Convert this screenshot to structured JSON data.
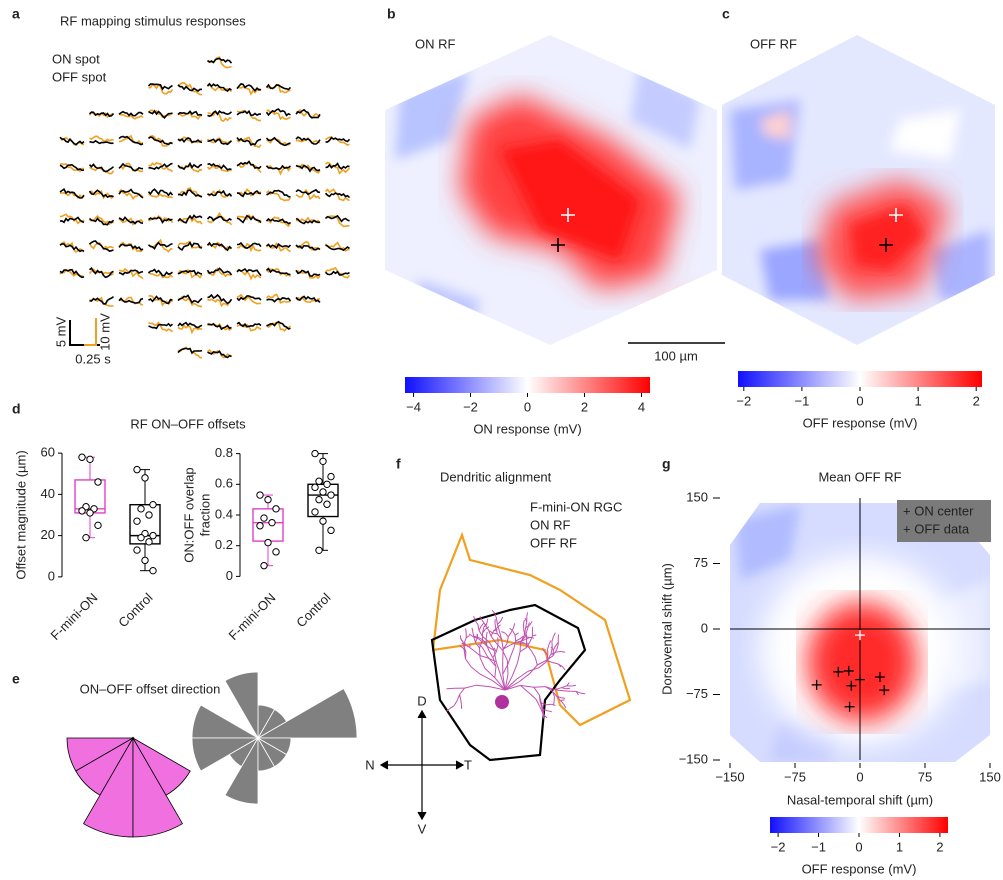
{
  "panel_a": {
    "letter": "a",
    "title": "RF mapping stimulus responses",
    "legend": [
      {
        "name": "ON spot",
        "color": "#f0a020"
      },
      {
        "name": "OFF spot",
        "color": "#000000"
      }
    ],
    "scale_bars": {
      "off_y": "5 mV",
      "on_y": "10 mV",
      "x": "0.25 s"
    }
  },
  "panel_b": {
    "letter": "b",
    "title": "ON RF",
    "scale_bar": "100 µm",
    "colorbar": {
      "label": "ON response (mV)",
      "lim": [
        -4.3,
        4.3
      ],
      "ticks": [
        {
          "value": -4,
          "label": "−4"
        },
        {
          "value": -2,
          "label": "−2"
        },
        0,
        2,
        4
      ]
    }
  },
  "panel_c": {
    "letter": "c",
    "title": "OFF RF",
    "colorbar": {
      "label": "OFF response (mV)",
      "lim": [
        -2.1,
        2.1
      ],
      "ticks": [
        {
          "value": -2,
          "label": "−2"
        },
        {
          "value": -1,
          "label": "−1"
        },
        0,
        1,
        2
      ]
    }
  },
  "panel_d": {
    "letter": "d",
    "title": "RF ON–OFF offsets",
    "plots": [
      {
        "y_label_lines": [
          "Offset magnitude (µm)"
        ],
        "ylim": [
          -2,
          62
        ],
        "yticks": [
          0,
          20,
          40,
          60
        ],
        "groups": [
          {
            "name": "F-mini-ON",
            "color": "#e040c8",
            "min": 19,
            "q1": 31,
            "median": 33,
            "q3": 47,
            "max": 58,
            "points": [
              58,
              57,
              46,
              34,
              33,
              32,
              31,
              25,
              19
            ]
          },
          {
            "name": "Control",
            "color": "#000000",
            "min": 3,
            "q1": 16,
            "median": 20,
            "q3": 35,
            "max": 52,
            "points": [
              52,
              48,
              35,
              33,
              30,
              27,
              21,
              20,
              19,
              17,
              13,
              8,
              3
            ]
          }
        ]
      },
      {
        "y_label_lines": [
          "ON:OFF overlap",
          "fraction"
        ],
        "ylim": [
          -0.03,
          0.83
        ],
        "yticks": [
          0,
          0.2,
          0.4,
          0.6,
          0.8
        ],
        "groups": [
          {
            "name": "F-mini-ON",
            "color": "#e040c8",
            "min": 0.07,
            "q1": 0.23,
            "median": 0.35,
            "q3": 0.44,
            "max": 0.53,
            "points": [
              0.53,
              0.5,
              0.44,
              0.38,
              0.35,
              0.33,
              0.22,
              0.16,
              0.07
            ]
          },
          {
            "name": "Control",
            "color": "#000000",
            "min": 0.17,
            "q1": 0.39,
            "median": 0.53,
            "q3": 0.6,
            "max": 0.8,
            "points": [
              0.8,
              0.75,
              0.65,
              0.62,
              0.6,
              0.58,
              0.55,
              0.53,
              0.5,
              0.47,
              0.42,
              0.36,
              0.3,
              0.17
            ]
          }
        ]
      }
    ]
  },
  "panel_e": {
    "letter": "e",
    "title": "ON–OFF offset direction",
    "bin_centers_deg": [
      15,
      45,
      75,
      105,
      135,
      165,
      195,
      225,
      255,
      285,
      315,
      345
    ],
    "roses": [
      {
        "color": "#f070e0",
        "counts": [
          0,
          0,
          0,
          0,
          0,
          0,
          2,
          2,
          3,
          3,
          2,
          0
        ]
      },
      {
        "color": "#808080",
        "counts": [
          3,
          1,
          1,
          2,
          0,
          2,
          2,
          1,
          2,
          1,
          1,
          1
        ]
      }
    ]
  },
  "panel_f": {
    "letter": "f",
    "title": "Dendritic alignment",
    "legend": [
      {
        "name": "F-mini-ON RGC",
        "color": "#c040b0"
      },
      {
        "name": "ON RF",
        "color": "#f0a020"
      },
      {
        "name": "OFF RF",
        "color": "#000000"
      }
    ],
    "compass": {
      "up": "D",
      "left": "N",
      "right": "T",
      "down": "V"
    }
  },
  "panel_g": {
    "letter": "g",
    "title": "Mean OFF RF",
    "x_label": "Nasal-temporal shift (µm)",
    "y_label": "Dorsoventral shift (µm)",
    "xlim": [
      -150,
      150
    ],
    "ylim": [
      -150,
      150
    ],
    "xticks": [
      {
        "value": -150,
        "label": "−150"
      },
      {
        "value": -75,
        "label": "−75"
      },
      0,
      75,
      150
    ],
    "yticks": [
      {
        "value": -150,
        "label": "−150"
      },
      {
        "value": -75,
        "label": "−75"
      },
      0,
      75,
      150
    ],
    "legend": [
      {
        "name": "+ ON center",
        "color": "#ffffff"
      },
      {
        "name": "+ OFF data",
        "color": "#000000"
      }
    ],
    "on_center": [
      0,
      -7
    ],
    "off_data": {
      "x": [
        -50,
        -25,
        -13,
        -10,
        -12,
        0,
        23,
        28
      ],
      "y": [
        -64,
        -49,
        -48,
        -65,
        -89,
        -58,
        -55,
        -70
      ]
    },
    "colorbar": {
      "label": "OFF response (mV)",
      "lim": [
        -2.2,
        2.2
      ],
      "ticks": [
        {
          "value": -2,
          "label": "−2"
        },
        {
          "value": -1,
          "label": "−1"
        },
        0,
        1,
        2
      ]
    }
  }
}
